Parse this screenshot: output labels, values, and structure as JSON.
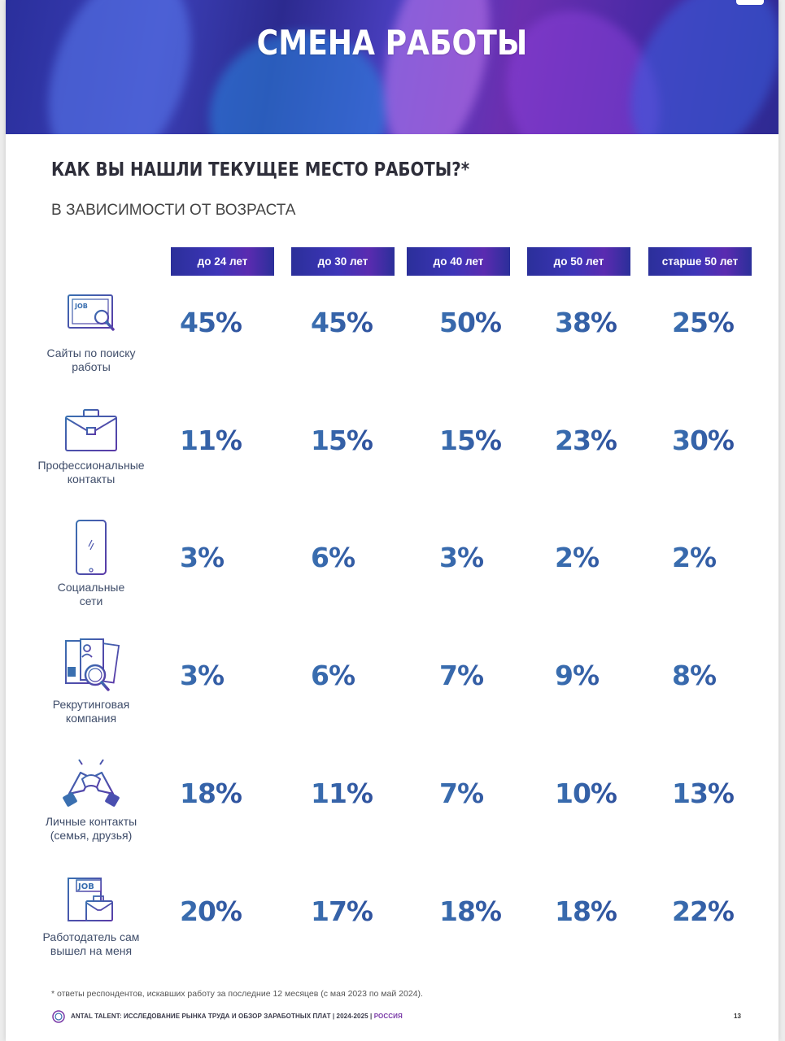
{
  "title": "СМЕНА РАБОТЫ",
  "question": "КАК ВЫ НАШЛИ ТЕКУЩЕЕ МЕСТО РАБОТЫ?*",
  "subtitle": "В ЗАВИСИМОСТИ ОТ ВОЗРАСТА",
  "colors": {
    "banner_start": "#2a2f9c",
    "banner_end": "#6b2fb0",
    "value_blue": "#3663a6",
    "header_bg": "#3d35b8"
  },
  "columns": [
    "до 24 лет",
    "до 30 лет",
    "до 40 лет",
    "до 50 лет",
    "старше 50 лет"
  ],
  "rows": [
    {
      "icon": "job-search-monitor-icon",
      "label_line1": "Сайты по поиску",
      "label_line2": "работы",
      "values": [
        "45%",
        "45%",
        "50%",
        "38%",
        "25%"
      ]
    },
    {
      "icon": "briefcase-icon",
      "label_line1": "Профессиональные",
      "label_line2": "контакты",
      "values": [
        "11%",
        "15%",
        "15%",
        "23%",
        "30%"
      ]
    },
    {
      "icon": "smartphone-icon",
      "label_line1": "Социальные",
      "label_line2": "сети",
      "values": [
        "3%",
        "6%",
        "3%",
        "2%",
        "2%"
      ]
    },
    {
      "icon": "resume-magnifier-icon",
      "label_line1": "Рекрутинговая",
      "label_line2": "компания",
      "values": [
        "3%",
        "6%",
        "7%",
        "9%",
        "8%"
      ]
    },
    {
      "icon": "handshake-icon",
      "label_line1": "Личные контакты",
      "label_line2": "(семья, друзья)",
      "values": [
        "18%",
        "11%",
        "7%",
        "10%",
        "13%"
      ]
    },
    {
      "icon": "job-offer-briefcase-icon",
      "label_line1": "Работодатель сам",
      "label_line2": "вышел на меня",
      "values": [
        "20%",
        "17%",
        "18%",
        "18%",
        "22%"
      ]
    }
  ],
  "footnote": "* ответы респондентов, искавших работу за последние 12 месяцев (с мая 2023 по май 2024).",
  "footer": {
    "text": "ANTAL TALENT: ИССЛЕДОВАНИЕ РЫНКА ТРУДА И ОБЗОР ЗАРАБОТНЫХ ПЛАТ | 2024-2025 |",
    "accent": "РОССИЯ",
    "page_number": "13"
  }
}
